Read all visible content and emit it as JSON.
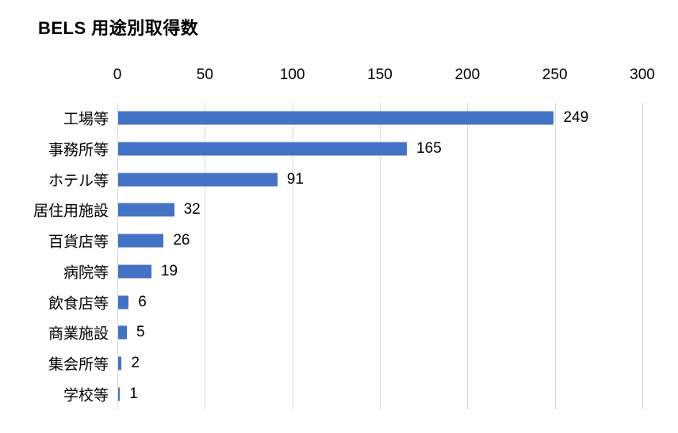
{
  "chart_data": {
    "type": "bar",
    "orientation": "horizontal",
    "title": "BELS 用途別取得数",
    "categories": [
      "工場等",
      "事務所等",
      "ホテル等",
      "居住用施設",
      "百貨店等",
      "病院等",
      "飲食店等",
      "商業施設",
      "集会所等",
      "学校等"
    ],
    "values": [
      249,
      165,
      91,
      32,
      26,
      19,
      6,
      5,
      2,
      1
    ],
    "xticks": [
      0,
      50,
      100,
      150,
      200,
      250,
      300
    ],
    "xlim": [
      0,
      300
    ],
    "xlabel": "",
    "ylabel": "",
    "grid": true,
    "legend": "none",
    "value_labels": true,
    "colors": {
      "bar": "#4472c4",
      "gridline": "#d9d9d9",
      "text": "#000000",
      "background": "#ffffff"
    }
  }
}
